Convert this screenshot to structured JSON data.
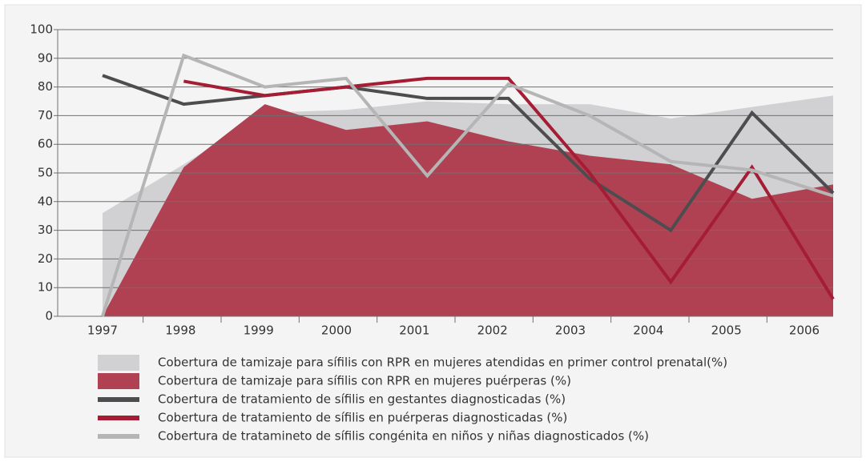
{
  "chart_data": {
    "type": "line",
    "categories": [
      "1997",
      "1998",
      "1999",
      "2000",
      "2001",
      "2002",
      "2003",
      "2004",
      "2005",
      "2006"
    ],
    "ylim": [
      0,
      100
    ],
    "yticks": [
      0,
      10,
      20,
      30,
      40,
      50,
      60,
      70,
      80,
      90,
      100
    ],
    "grid": true,
    "legend": "bottom",
    "series": [
      {
        "name": "Cobertura de tamizaje para sífilis con RPR en mujeres atendidas en primer control prenatal(%)",
        "kind": "area",
        "color": "#d1d1d3",
        "values": [
          36,
          53,
          71,
          72,
          75,
          74,
          74,
          69,
          73,
          77
        ]
      },
      {
        "name": "Cobertura de tamizaje para sífilis con RPR en mujeres puérperas (%)",
        "kind": "area",
        "color": "#b04152",
        "values": [
          0,
          52,
          74,
          65,
          68,
          61,
          56,
          53,
          41,
          46
        ]
      },
      {
        "name": "Cobertura de tratamiento de sífilis en gestantes diagnosticadas (%)",
        "kind": "line",
        "color": "#4d4d4f",
        "values": [
          84,
          74,
          77,
          80,
          76,
          76,
          48,
          30,
          71,
          43
        ]
      },
      {
        "name": "Cobertura de tratamiento de sífilis en puérperas diagnosticadas  (%)",
        "kind": "line",
        "color": "#a51d34",
        "values": [
          null,
          82,
          77,
          80,
          83,
          83,
          50,
          12,
          52,
          6
        ]
      },
      {
        "name": "Cobertura de tratamineto de sífilis congénita en niños y niñas diagnosticados (%)",
        "kind": "line",
        "color": "#b5b5b5",
        "values": [
          0,
          91,
          80,
          83,
          49,
          81,
          70,
          54,
          51,
          42
        ]
      }
    ]
  }
}
